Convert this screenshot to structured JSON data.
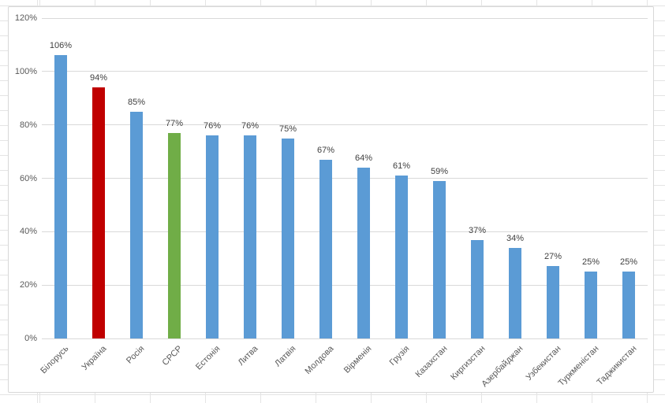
{
  "chart_data": {
    "type": "bar",
    "title": "",
    "xlabel": "",
    "ylabel": "",
    "categories": [
      "Білорусь",
      "Україна",
      "Росія",
      "СРСР",
      "Естонія",
      "Литва",
      "Латвія",
      "Молдова",
      "Вірменія",
      "Грузія",
      "Казахстан",
      "Киргизстан",
      "Азербайджан",
      "Узбекистан",
      "Туркменістан",
      "Таджикистан"
    ],
    "values": [
      106,
      94,
      85,
      77,
      76,
      76,
      75,
      67,
      64,
      61,
      59,
      37,
      34,
      27,
      25,
      25
    ],
    "data_labels": [
      "106%",
      "94%",
      "85%",
      "77%",
      "76%",
      "76%",
      "75%",
      "67%",
      "64%",
      "61%",
      "59%",
      "37%",
      "34%",
      "27%",
      "25%",
      "25%"
    ],
    "bar_colors": [
      "#5B9BD5",
      "#C00000",
      "#5B9BD5",
      "#70AD47",
      "#5B9BD5",
      "#5B9BD5",
      "#5B9BD5",
      "#5B9BD5",
      "#5B9BD5",
      "#5B9BD5",
      "#5B9BD5",
      "#5B9BD5",
      "#5B9BD5",
      "#5B9BD5",
      "#5B9BD5",
      "#5B9BD5"
    ],
    "ylim": [
      0,
      120
    ],
    "ytick_labels": [
      "0%",
      "20%",
      "40%",
      "60%",
      "80%",
      "100%",
      "120%"
    ],
    "grid": true,
    "legend_position": "none",
    "accent_colors": {
      "default_blue": "#5B9BD5",
      "highlight_red": "#C00000",
      "highlight_green": "#70AD47"
    },
    "style_colors": {
      "gridline": "#d9d9d9",
      "axis_text": "#595959",
      "data_label_text": "#404040",
      "chart_border": "#d8d8d8",
      "sheet_gridline": "#e4e4e4"
    }
  }
}
